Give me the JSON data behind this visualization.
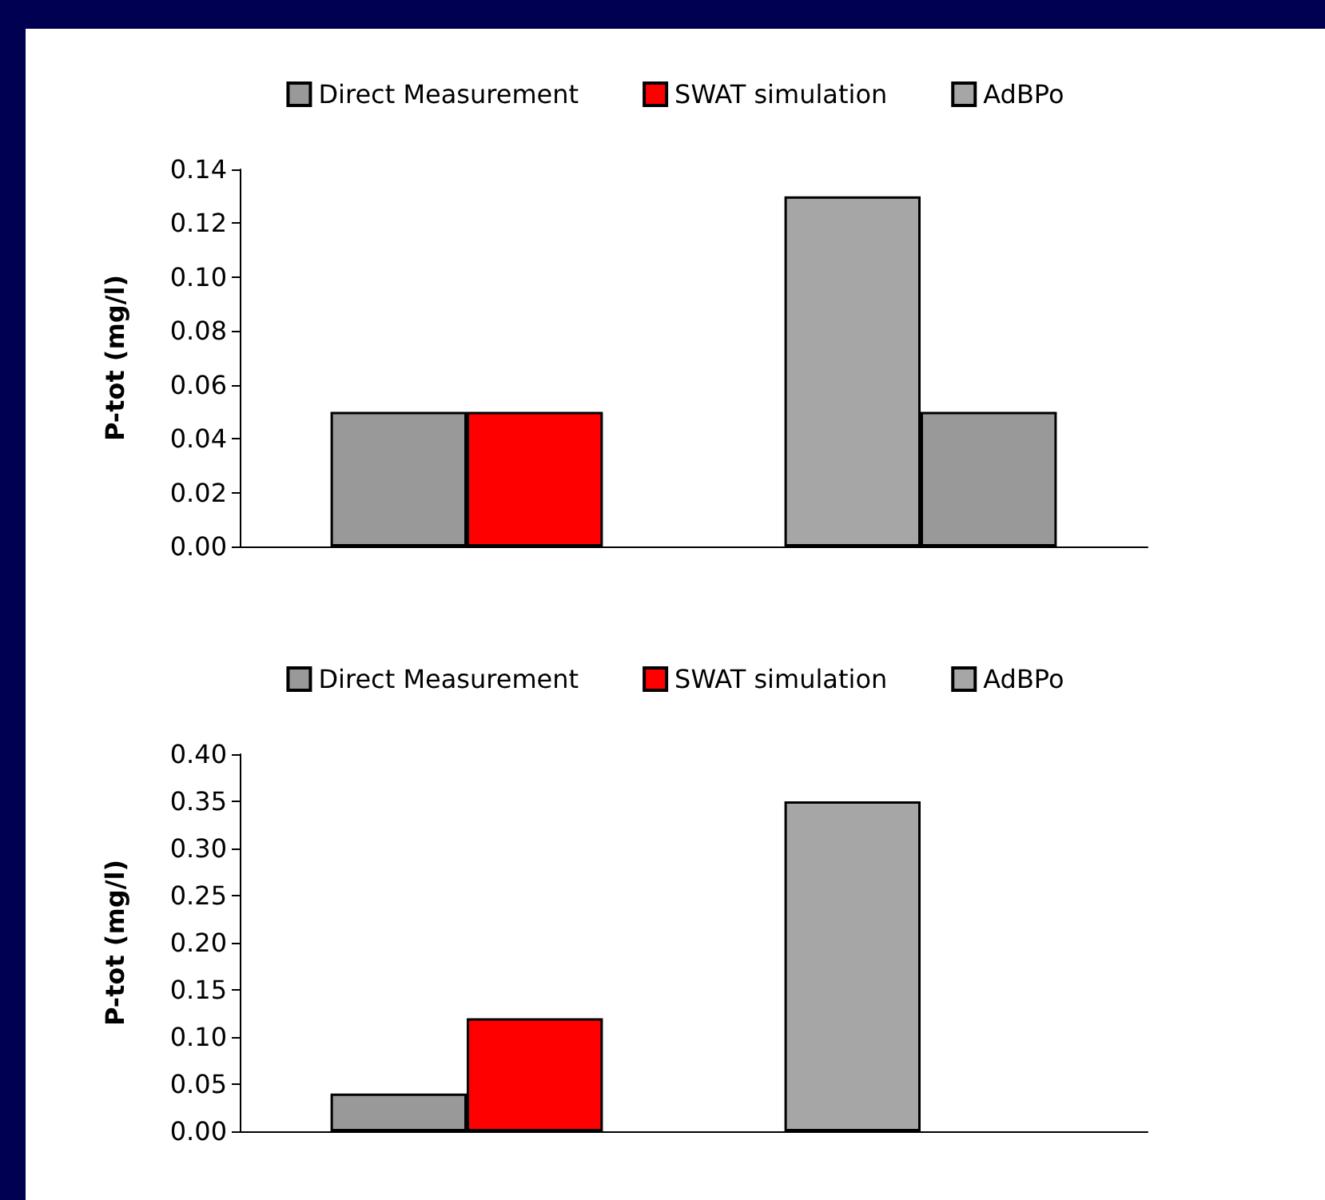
{
  "chart_data": [
    {
      "type": "bar",
      "categories": [
        null,
        null
      ],
      "ylabel": "P-tot (mg/l)",
      "ylim": [
        0,
        0.14
      ],
      "yticks": [
        {
          "value": 0,
          "label": "0.00"
        },
        {
          "value": 0.02,
          "label": "0.02"
        },
        {
          "value": 0.04,
          "label": "0.04"
        },
        {
          "value": 0.06,
          "label": "0.06"
        },
        {
          "value": 0.08,
          "label": "0.08"
        },
        {
          "value": 0.1,
          "label": "0.10"
        },
        {
          "value": 0.12,
          "label": "0.12"
        },
        {
          "value": 0.14,
          "label": "0.14"
        }
      ],
      "legend": "top",
      "grid": false,
      "series": [
        {
          "name": "Direct Measurement",
          "color": "#999999",
          "values": [
            0.05,
            null
          ]
        },
        {
          "name": "SWAT simulation",
          "color": "#ff0000",
          "values": [
            0.05,
            null
          ]
        },
        {
          "name": "AdBPo",
          "color": "#a6a6a6",
          "values": [
            null,
            0.13
          ]
        },
        {
          "color": "#999999",
          "values": [
            null,
            0.05
          ]
        }
      ]
    },
    {
      "type": "bar",
      "categories": [
        null,
        null
      ],
      "ylabel": "P-tot (mg/l)",
      "ylim": [
        0,
        0.4
      ],
      "yticks": [
        {
          "value": 0,
          "label": "0.00"
        },
        {
          "value": 0.05,
          "label": "0.05"
        },
        {
          "value": 0.1,
          "label": "0.10"
        },
        {
          "value": 0.15,
          "label": "0.15"
        },
        {
          "value": 0.2,
          "label": "0.20"
        },
        {
          "value": 0.25,
          "label": "0.25"
        },
        {
          "value": 0.3,
          "label": "0.30"
        },
        {
          "value": 0.35,
          "label": "0.35"
        },
        {
          "value": 0.4,
          "label": "0.40"
        }
      ],
      "legend": "top",
      "grid": false,
      "series": [
        {
          "name": "Direct Measurement",
          "color": "#999999",
          "values": [
            0.04,
            null
          ]
        },
        {
          "name": "SWAT simulation",
          "color": "#ff0000",
          "values": [
            0.12,
            null
          ]
        },
        {
          "name": "AdBPo",
          "color": "#a6a6a6",
          "values": [
            null,
            0.35
          ]
        }
      ]
    }
  ]
}
